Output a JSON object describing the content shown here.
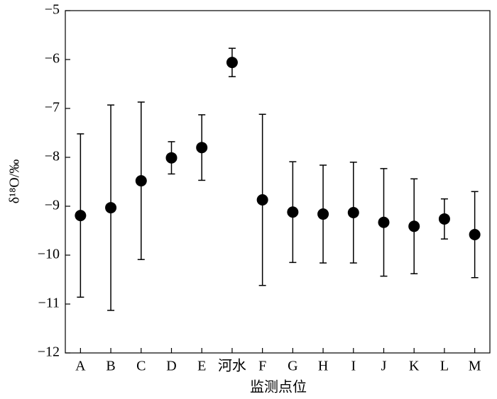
{
  "chart_data": {
    "type": "errorbar",
    "x_label": "监测点位",
    "y_label": "δ¹⁸O/‰",
    "categories": [
      "A",
      "B",
      "C",
      "D",
      "E",
      "河水",
      "F",
      "G",
      "H",
      "I",
      "J",
      "K",
      "L",
      "M"
    ],
    "values": [
      -9.19,
      -9.03,
      -8.48,
      -8.01,
      -7.8,
      -6.06,
      -8.87,
      -9.12,
      -9.16,
      -9.13,
      -9.33,
      -9.41,
      -9.26,
      -9.58
    ],
    "errors": [
      1.67,
      2.1,
      1.61,
      0.33,
      0.67,
      0.29,
      1.75,
      1.03,
      1.0,
      1.03,
      1.1,
      0.97,
      0.41,
      0.88
    ],
    "color": "#000000",
    "ylim": [
      -12,
      -5
    ],
    "yticks": [
      {
        "value": -12,
        "label": "−12"
      },
      {
        "value": -11,
        "label": "−11"
      },
      {
        "value": -10,
        "label": "−10"
      },
      {
        "value": -9,
        "label": "−9"
      },
      {
        "value": -8,
        "label": "−8"
      },
      {
        "value": -7,
        "label": "−7"
      },
      {
        "value": -6,
        "label": "−6"
      },
      {
        "value": -5,
        "label": "−5"
      }
    ],
    "grid": false
  }
}
